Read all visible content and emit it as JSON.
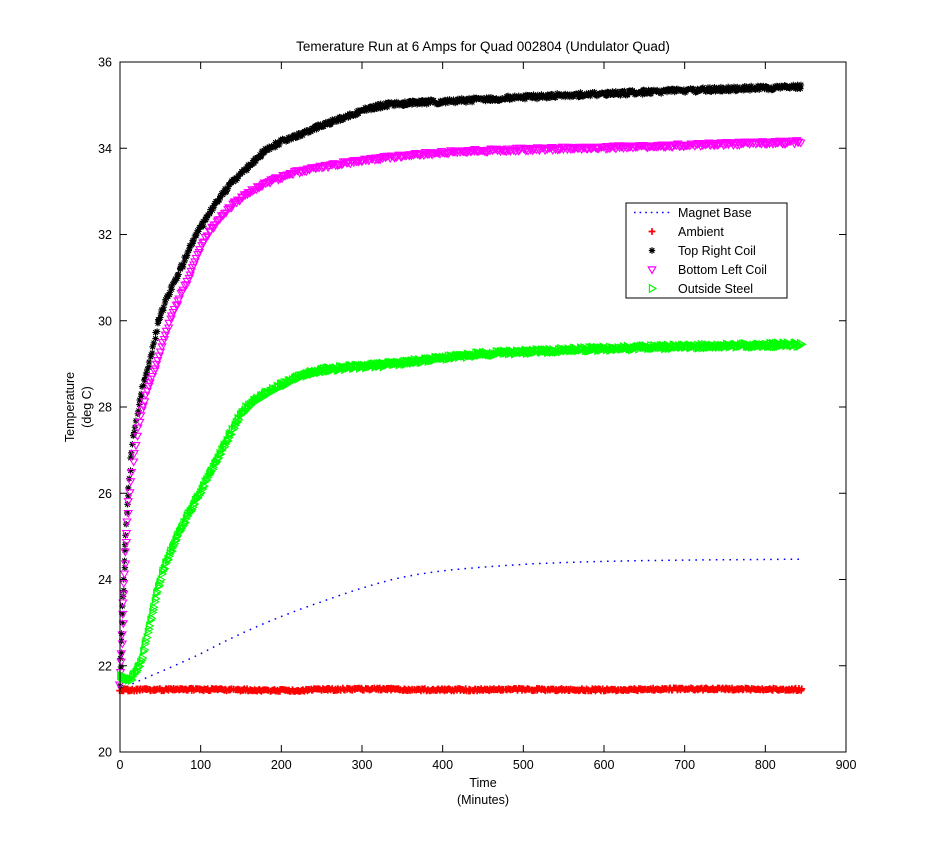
{
  "figure": {
    "x_axis_label": {
      "line1": "Time",
      "line2": "(Minutes)"
    },
    "y_axis_label": {
      "line1": "Temperature",
      "line2": "(deg C)"
    }
  },
  "chart_data": {
    "type": "scatter",
    "title": "Temerature Run at 6 Amps for Quad 002804 (Undulator Quad)",
    "xlabel": "Time (Minutes)",
    "ylabel": "Temperature (deg C)",
    "xlim": [
      0,
      900
    ],
    "ylim": [
      20,
      36
    ],
    "xticks": [
      0,
      100,
      200,
      300,
      400,
      500,
      600,
      700,
      800,
      900
    ],
    "yticks": [
      20,
      22,
      24,
      26,
      28,
      30,
      32,
      34,
      36
    ],
    "grid": false,
    "legend_position": "inside-upper-right",
    "background_color": "#ffffff",
    "axis_color": "#000000",
    "series": [
      {
        "name": "Magnet Base",
        "color": "#0000ff",
        "style": "dotted-line",
        "marker": "none",
        "t": [
          0,
          20,
          50,
          90,
          135,
          175,
          215,
          260,
          300,
          350,
          400,
          460,
          520,
          600,
          700,
          845
        ],
        "T": [
          21.45,
          21.62,
          21.86,
          22.19,
          22.61,
          22.95,
          23.25,
          23.55,
          23.8,
          24.05,
          24.2,
          24.3,
          24.37,
          24.42,
          24.45,
          24.47
        ]
      },
      {
        "name": "Ambient",
        "color": "#ff0000",
        "style": "markers",
        "marker": "plus",
        "t": [
          0,
          100,
          200,
          300,
          400,
          500,
          600,
          700,
          845
        ],
        "T": [
          21.44,
          21.45,
          21.43,
          21.46,
          21.44,
          21.45,
          21.44,
          21.46,
          21.45
        ]
      },
      {
        "name": "Top Right Coil",
        "color": "#000000",
        "style": "markers",
        "marker": "asterisk",
        "t": [
          0,
          3,
          6,
          10,
          15,
          22,
          30,
          40,
          48,
          60,
          75,
          95,
          115,
          130,
          155,
          185,
          220,
          260,
          330,
          420,
          520,
          650,
          750,
          845
        ],
        "T": [
          21.5,
          23.0,
          24.5,
          26.0,
          27.0,
          27.9,
          28.6,
          29.3,
          30.0,
          30.6,
          31.2,
          32.0,
          32.6,
          33.0,
          33.5,
          34.0,
          34.3,
          34.6,
          35.0,
          35.1,
          35.2,
          35.3,
          35.37,
          35.42
        ]
      },
      {
        "name": "Bottom Left Coil",
        "color": "#ff00ff",
        "style": "markers",
        "marker": "triangle-down-open",
        "t": [
          0,
          3,
          6,
          10,
          15,
          22,
          30,
          45,
          62,
          85,
          109,
          135,
          161,
          195,
          230,
          270,
          310,
          382,
          450,
          600,
          700,
          845
        ],
        "T": [
          21.6,
          22.8,
          24.2,
          25.6,
          26.5,
          27.4,
          28.1,
          29.0,
          30.0,
          31.0,
          32.0,
          32.6,
          33.0,
          33.3,
          33.5,
          33.63,
          33.75,
          33.88,
          33.95,
          34.02,
          34.08,
          34.15
        ]
      },
      {
        "name": "Outside Steel",
        "color": "#00ff00",
        "style": "markers",
        "marker": "triangle-right-open",
        "t": [
          0,
          6,
          12,
          18,
          24,
          37,
          50,
          75,
          99,
          125,
          158,
          200,
          250,
          322,
          446,
          550,
          653,
          750,
          845
        ],
        "T": [
          21.78,
          21.7,
          21.66,
          21.8,
          22.0,
          23.0,
          24.0,
          25.15,
          26.0,
          26.95,
          28.0,
          28.5,
          28.85,
          28.97,
          29.22,
          29.32,
          29.38,
          29.42,
          29.45
        ]
      }
    ]
  }
}
